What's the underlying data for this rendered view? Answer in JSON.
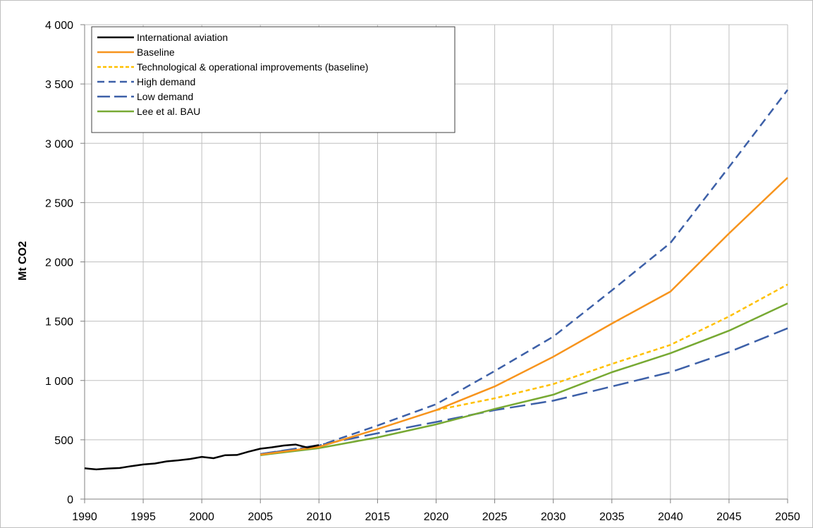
{
  "chart_data": {
    "type": "line",
    "title": "",
    "xlabel": "",
    "ylabel": "Mt CO2",
    "xlim": [
      1990,
      2050
    ],
    "ylim": [
      0,
      4000
    ],
    "x_ticks": [
      1990,
      1995,
      2000,
      2005,
      2010,
      2015,
      2020,
      2025,
      2030,
      2035,
      2040,
      2045,
      2050
    ],
    "x_tick_labels": [
      "1990",
      "1995",
      "2000",
      "2005",
      "2010",
      "2015",
      "2020",
      "2025",
      "2030",
      "2035",
      "2040",
      "2045",
      "2050"
    ],
    "y_ticks": [
      0,
      500,
      1000,
      1500,
      2000,
      2500,
      3000,
      3500,
      4000
    ],
    "y_tick_labels": [
      "0",
      "500",
      "1 000",
      "1 500",
      "2 000",
      "2 500",
      "3 000",
      "3 500",
      "4 000"
    ],
    "grid": true,
    "legend_position": "top-left",
    "series": [
      {
        "name": "International aviation",
        "color": "#000000",
        "style": "solid",
        "x": [
          1990,
          1991,
          1992,
          1993,
          1994,
          1995,
          1996,
          1997,
          1998,
          1999,
          2000,
          2001,
          2002,
          2003,
          2004,
          2005,
          2006,
          2007,
          2008,
          2009,
          2010
        ],
        "y": [
          260,
          250,
          258,
          262,
          278,
          292,
          300,
          318,
          327,
          338,
          356,
          345,
          370,
          372,
          400,
          425,
          437,
          452,
          460,
          435,
          455
        ]
      },
      {
        "name": "Baseline",
        "color": "#f7941d",
        "style": "solid",
        "x": [
          2005,
          2010,
          2015,
          2020,
          2025,
          2030,
          2035,
          2040,
          2045,
          2050
        ],
        "y": [
          375,
          440,
          590,
          750,
          950,
          1200,
          1480,
          1750,
          2240,
          2710
        ]
      },
      {
        "name": "Technological & operational improvements (baseline)",
        "color": "#ffc000",
        "style": "dotted",
        "x": [
          2020,
          2025,
          2030,
          2035,
          2040,
          2045,
          2050
        ],
        "y": [
          750,
          850,
          970,
          1140,
          1300,
          1540,
          1810
        ]
      },
      {
        "name": "High demand",
        "color": "#3d60a8",
        "style": "dashed",
        "x": [
          2005,
          2010,
          2015,
          2020,
          2025,
          2030,
          2035,
          2040,
          2045,
          2050
        ],
        "y": [
          380,
          450,
          620,
          800,
          1080,
          1370,
          1760,
          2160,
          2800,
          3450
        ]
      },
      {
        "name": "Low demand",
        "color": "#3d60a8",
        "style": "longdash",
        "x": [
          2005,
          2010,
          2015,
          2020,
          2025,
          2030,
          2035,
          2040,
          2045,
          2050
        ],
        "y": [
          380,
          455,
          555,
          650,
          750,
          830,
          950,
          1070,
          1240,
          1440
        ]
      },
      {
        "name": "Lee et al. BAU",
        "color": "#77a933",
        "style": "solid",
        "x": [
          2005,
          2010,
          2015,
          2020,
          2025,
          2030,
          2035,
          2040,
          2045,
          2050
        ],
        "y": [
          370,
          430,
          520,
          630,
          760,
          880,
          1070,
          1230,
          1420,
          1650
        ]
      }
    ]
  }
}
